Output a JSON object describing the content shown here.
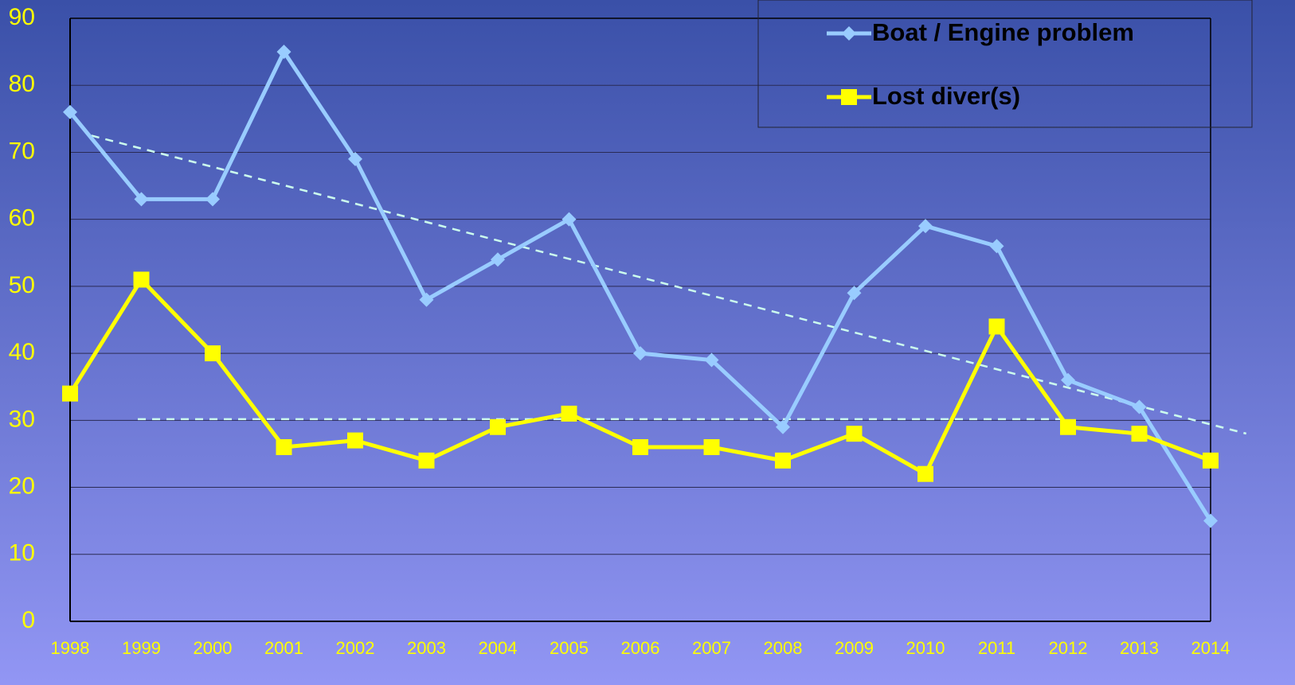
{
  "chart_data": {
    "type": "line",
    "categories": [
      "1998",
      "1999",
      "2000",
      "2001",
      "2002",
      "2003",
      "2004",
      "2005",
      "2006",
      "2007",
      "2008",
      "2009",
      "2010",
      "2011",
      "2012",
      "2013",
      "2014"
    ],
    "series": [
      {
        "name": "Boat / Engine problem",
        "color": "#99ccff",
        "marker": "diamond",
        "trendline": "linear",
        "values": [
          76,
          63,
          63,
          85,
          69,
          48,
          54,
          60,
          40,
          39,
          29,
          49,
          59,
          56,
          36,
          32,
          15
        ]
      },
      {
        "name": "Lost diver(s)",
        "color": "#ffff00",
        "marker": "square",
        "trendline": "mean",
        "values": [
          34,
          51,
          40,
          26,
          27,
          24,
          29,
          31,
          26,
          26,
          24,
          28,
          22,
          44,
          29,
          28,
          24
        ]
      }
    ],
    "ylim": [
      0,
      90
    ],
    "yticks": [
      0,
      10,
      20,
      30,
      40,
      50,
      60,
      70,
      80,
      90
    ],
    "grid": true,
    "legend": "top-right"
  }
}
